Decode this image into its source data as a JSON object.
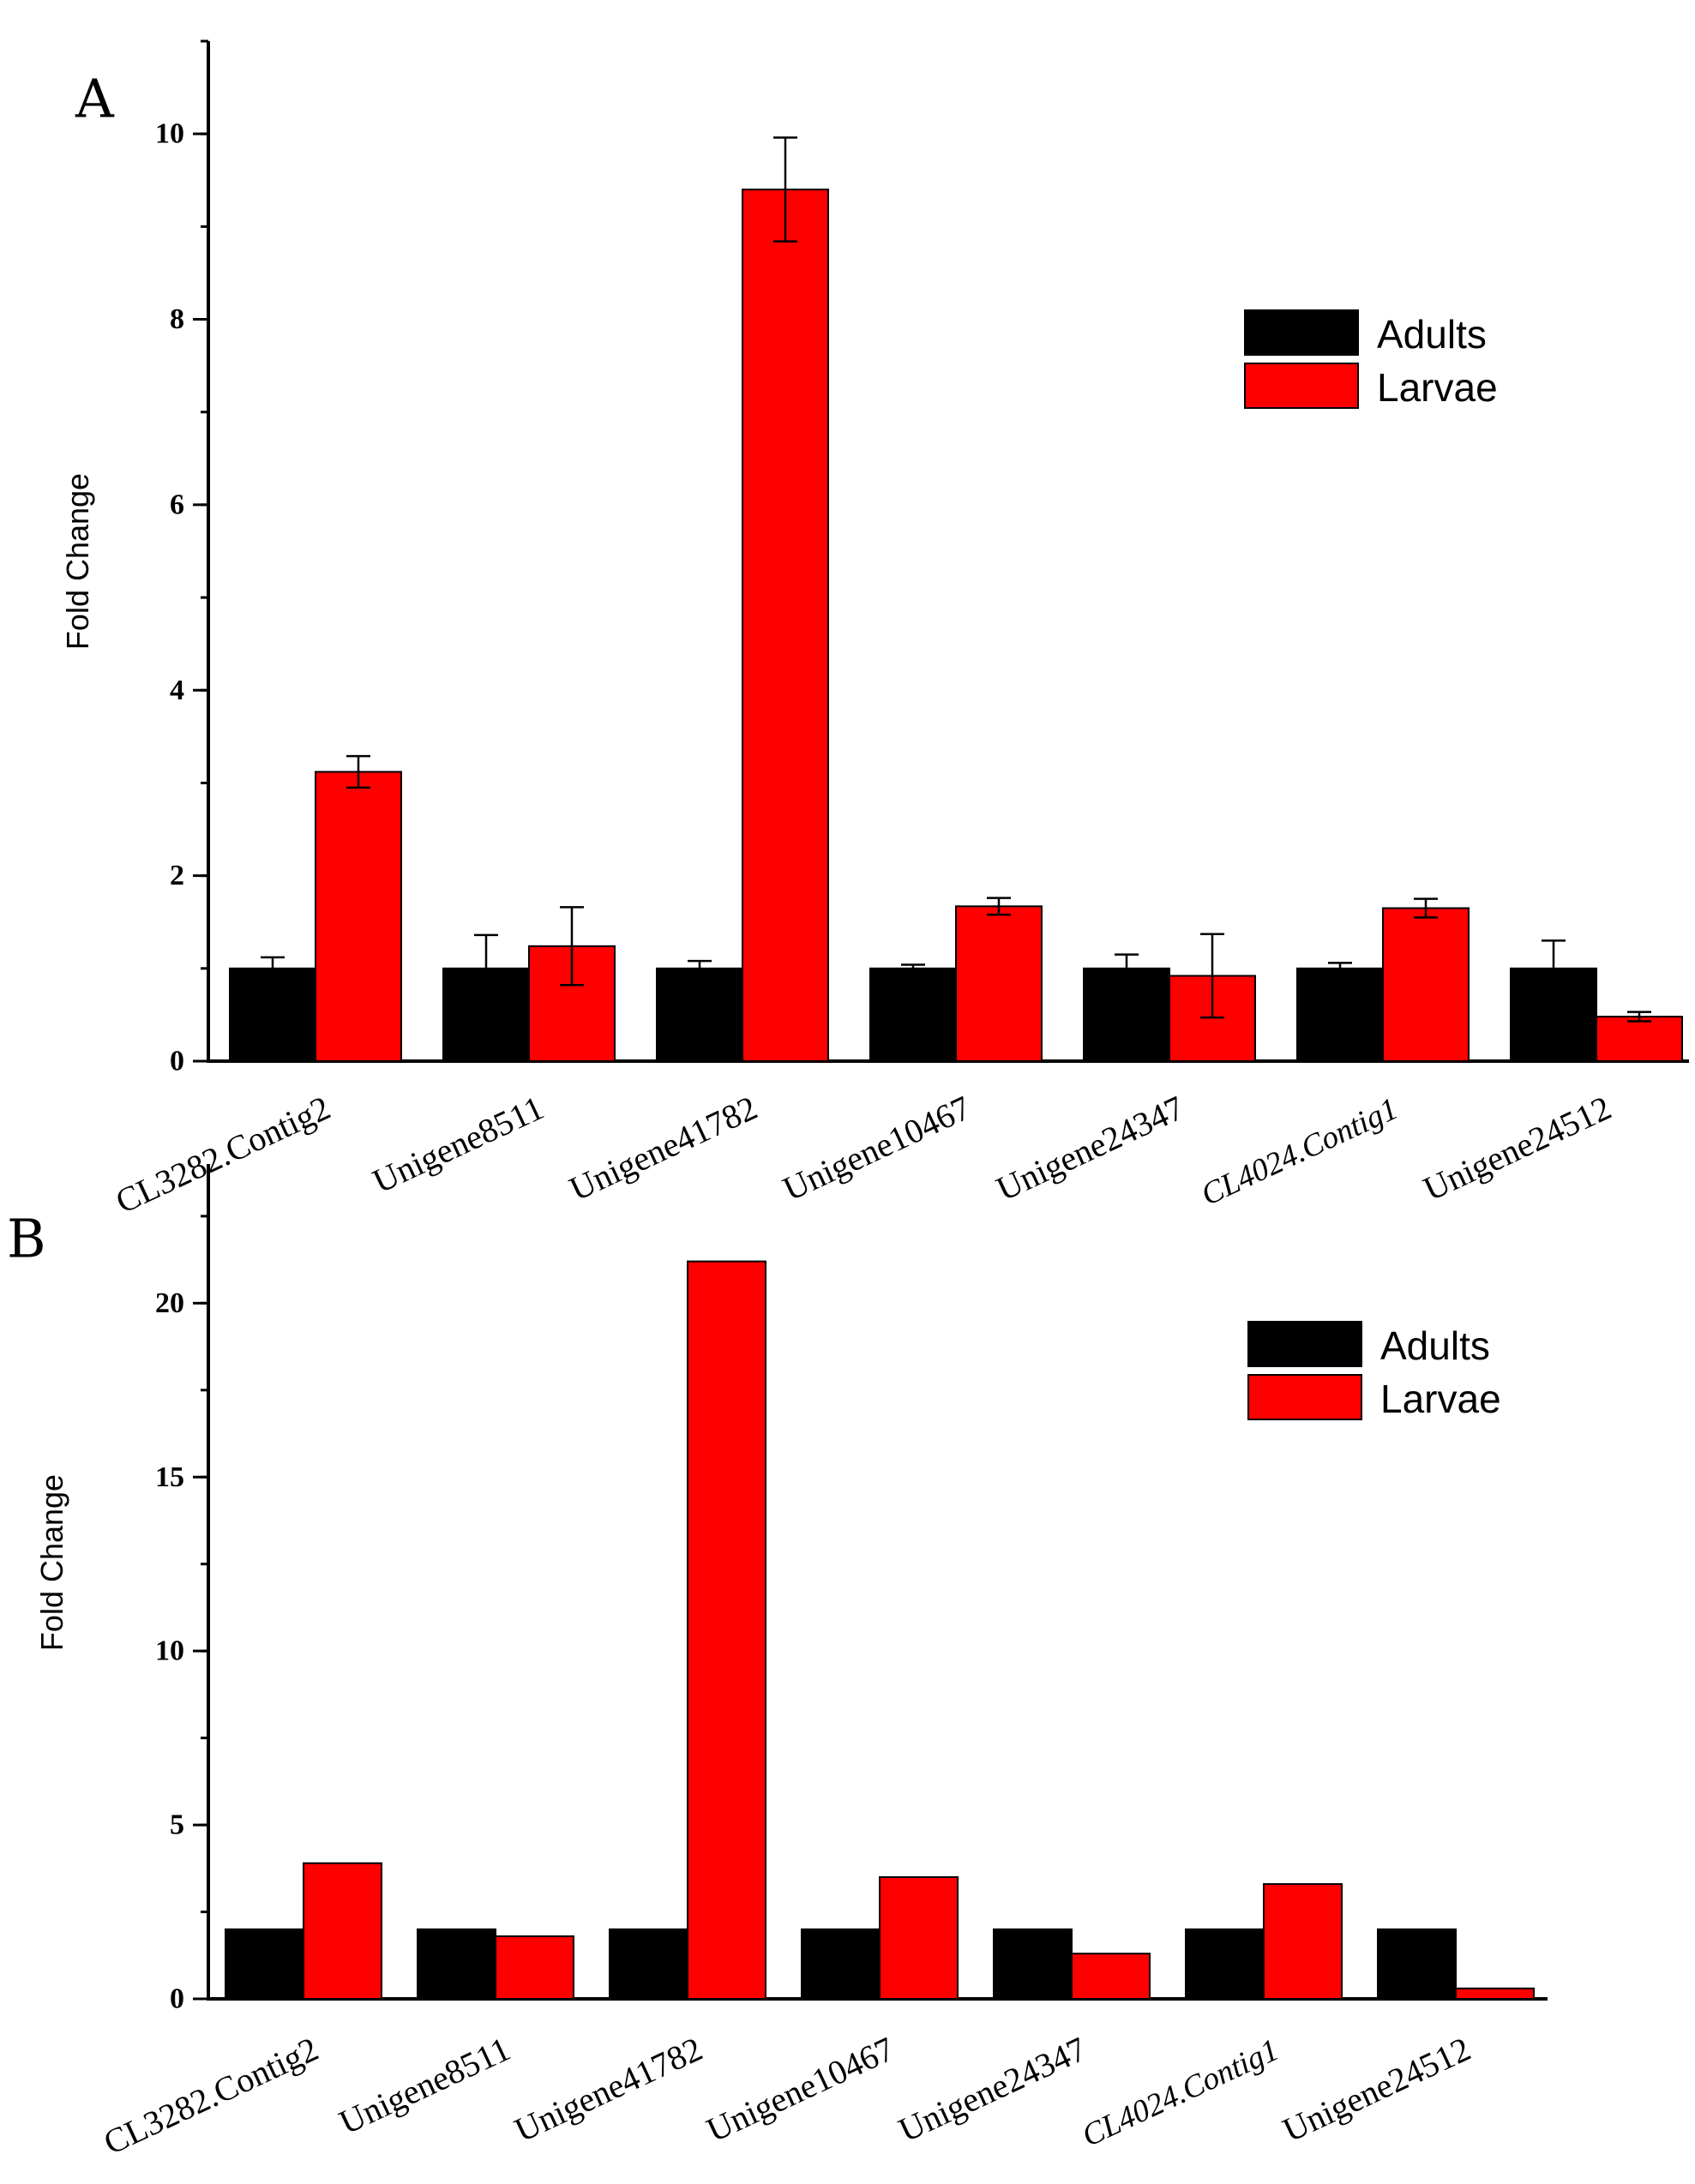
{
  "colors": {
    "adults": "#000000",
    "larvae": "#ff0000",
    "axis": "#000000",
    "bar_edge": "#000000"
  },
  "chart_data": [
    {
      "panel": "A",
      "type": "bar",
      "title": "",
      "xlabel": "",
      "ylabel": "Fold Change",
      "ylim": [
        0,
        11
      ],
      "yticks": [
        "0",
        "2",
        "4",
        "6",
        "8",
        "10"
      ],
      "ytick_values": [
        0,
        2,
        4,
        6,
        8,
        10
      ],
      "grid": false,
      "legend": "top-right",
      "error_bars": true,
      "categories": [
        "CL3282.Contig2",
        "Unigene8511",
        "Unigene41782",
        "Unigene10467",
        "Unigene24347",
        "CL4024.Contig1",
        "Unigene24512"
      ],
      "italic_categories": [
        "CL4024.Contig1"
      ],
      "series": [
        {
          "name": "Adults",
          "color": "#000000",
          "values": [
            1.0,
            1.0,
            1.0,
            1.0,
            1.0,
            1.0,
            1.0
          ],
          "errors": [
            0.12,
            0.36,
            0.08,
            0.04,
            0.15,
            0.06,
            0.3
          ]
        },
        {
          "name": "Larvae",
          "color": "#ff0000",
          "values": [
            3.12,
            1.24,
            9.4,
            1.67,
            0.92,
            1.65,
            0.48
          ],
          "errors": [
            0.17,
            0.42,
            0.56,
            0.09,
            0.45,
            0.1,
            0.05
          ]
        }
      ]
    },
    {
      "panel": "B",
      "type": "bar",
      "title": "",
      "xlabel": "",
      "ylabel": "Fold Change",
      "ylim": [
        0,
        24
      ],
      "yticks": [
        "0",
        "5",
        "10",
        "15",
        "20"
      ],
      "ytick_values": [
        0,
        5,
        10,
        15,
        20
      ],
      "grid": false,
      "legend": "top-right",
      "error_bars": false,
      "categories": [
        "CL3282.Contig2",
        "Unigene8511",
        "Unigene41782",
        "Unigene10467",
        "Unigene24347",
        "CL4024.Contig1",
        "Unigene24512"
      ],
      "italic_categories": [
        "CL4024.Contig1"
      ],
      "series": [
        {
          "name": "Adults",
          "color": "#000000",
          "values": [
            2.0,
            2.0,
            2.0,
            2.0,
            2.0,
            2.0,
            2.0
          ]
        },
        {
          "name": "Larvae",
          "color": "#ff0000",
          "values": [
            3.9,
            1.8,
            21.2,
            3.5,
            1.3,
            3.3,
            0.3
          ]
        }
      ]
    }
  ]
}
